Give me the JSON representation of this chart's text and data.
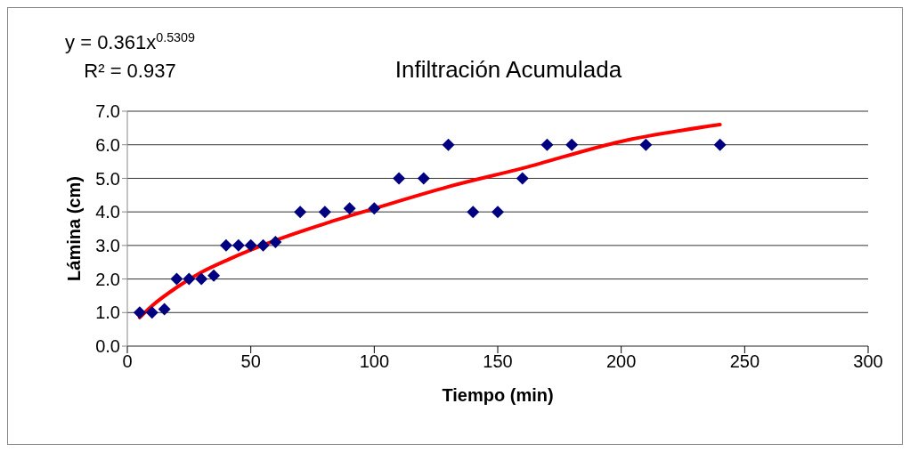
{
  "chart_data": {
    "type": "scatter",
    "title": "Infiltración Acumulada",
    "xlabel": "Tiempo (min)",
    "ylabel": "Lámina (cm)",
    "annotations": [
      "y = 0.361x$^{0.5309}$",
      "R² = 0.937"
    ],
    "xlim": [
      0,
      300
    ],
    "xticks": [
      0,
      50,
      100,
      150,
      200,
      250,
      300
    ],
    "ylim": [
      0,
      7
    ],
    "yticks": [
      {
        "value": 0,
        "label": "0.0"
      },
      {
        "value": 1,
        "label": "1.0"
      },
      {
        "value": 2,
        "label": "2.0"
      },
      {
        "value": 3,
        "label": "3.0"
      },
      {
        "value": 4,
        "label": "4.0"
      },
      {
        "value": 5,
        "label": "5.0"
      },
      {
        "value": 6,
        "label": "6.0"
      },
      {
        "value": 7,
        "label": "7.0"
      }
    ],
    "grid": "y",
    "legend": false,
    "series": [
      {
        "color": "#000080",
        "marker": "diamond",
        "x": [
          5,
          10,
          15,
          20,
          25,
          30,
          35,
          40,
          45,
          50,
          55,
          60,
          70,
          80,
          90,
          100,
          110,
          120,
          130,
          140,
          150,
          160,
          170,
          180,
          210,
          240
        ],
        "values": [
          1.0,
          1.0,
          1.1,
          2.0,
          2.0,
          2.0,
          2.1,
          3.0,
          3.0,
          3.0,
          3.0,
          3.1,
          4.0,
          4.0,
          4.1,
          4.1,
          5.0,
          5.0,
          6.0,
          4.0,
          4.0,
          5.0,
          6.0,
          6.0,
          6.0,
          6.0
        ]
      },
      {
        "type": "line",
        "color": "#ff0000",
        "marker": "none",
        "x": [
          5,
          10,
          20,
          30,
          40,
          60,
          80,
          100,
          130,
          160,
          200,
          240
        ],
        "values": [
          0.85,
          1.2,
          1.75,
          2.2,
          2.55,
          3.15,
          3.65,
          4.1,
          4.75,
          5.3,
          6.1,
          6.6
        ]
      }
    ]
  }
}
